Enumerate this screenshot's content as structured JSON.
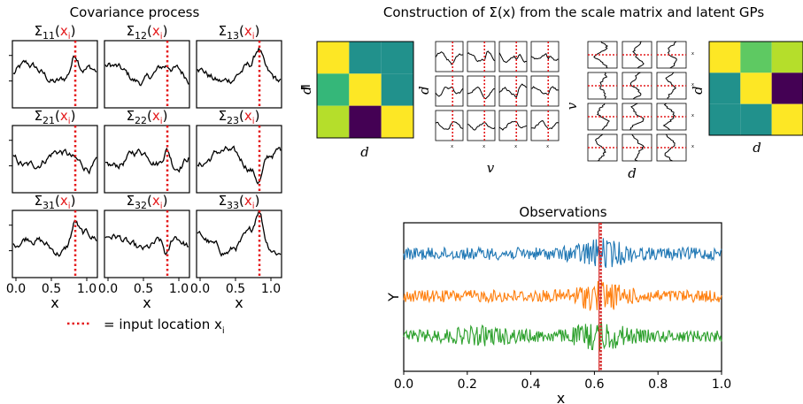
{
  "left_panel": {
    "title": "Covariance process",
    "subplots": [
      {
        "sym": "Σ",
        "sub": "11",
        "arg": "x",
        "argsub": "i"
      },
      {
        "sym": "Σ",
        "sub": "12",
        "arg": "x",
        "argsub": "i"
      },
      {
        "sym": "Σ",
        "sub": "13",
        "arg": "x",
        "argsub": "i"
      },
      {
        "sym": "Σ",
        "sub": "21",
        "arg": "x",
        "argsub": "i"
      },
      {
        "sym": "Σ",
        "sub": "22",
        "arg": "x",
        "argsub": "i"
      },
      {
        "sym": "Σ",
        "sub": "23",
        "arg": "x",
        "argsub": "i"
      },
      {
        "sym": "Σ",
        "sub": "31",
        "arg": "x",
        "argsub": "i"
      },
      {
        "sym": "Σ",
        "sub": "32",
        "arg": "x",
        "argsub": "i"
      },
      {
        "sym": "Σ",
        "sub": "33",
        "arg": "x",
        "argsub": "i"
      }
    ],
    "x_ticks": [
      "0.0",
      "0.5",
      "1.0"
    ],
    "xlabel": "x"
  },
  "legend": {
    "text": "= input location x",
    "sub": "i"
  },
  "construction": {
    "title": "Construction of Σ(x) from the scale matrix and latent GPs",
    "equals": "=",
    "label_d": "d",
    "label_v": "v",
    "tiny_x": "x",
    "left_heatmap": [
      [
        "#fde725",
        "#21918c",
        "#21918c"
      ],
      [
        "#35b779",
        "#fde725",
        "#21918c"
      ],
      [
        "#b5de2b",
        "#440154",
        "#fde725"
      ]
    ],
    "right_heatmap": [
      [
        "#fde725",
        "#5ec962",
        "#b5de2b"
      ],
      [
        "#21918c",
        "#fde725",
        "#440154"
      ],
      [
        "#21918c",
        "#21918c",
        "#fde725"
      ]
    ]
  },
  "observations": {
    "title": "Observations",
    "xlabel": "x",
    "ylabel": "Y",
    "x_ticks": [
      "0.0",
      "0.2",
      "0.4",
      "0.6",
      "0.8",
      "1.0"
    ],
    "series_colors": [
      "#1f77b4",
      "#ff7f0e",
      "#2ca02c"
    ],
    "marker_color": "#d62728",
    "marker_x": 0.62
  }
}
